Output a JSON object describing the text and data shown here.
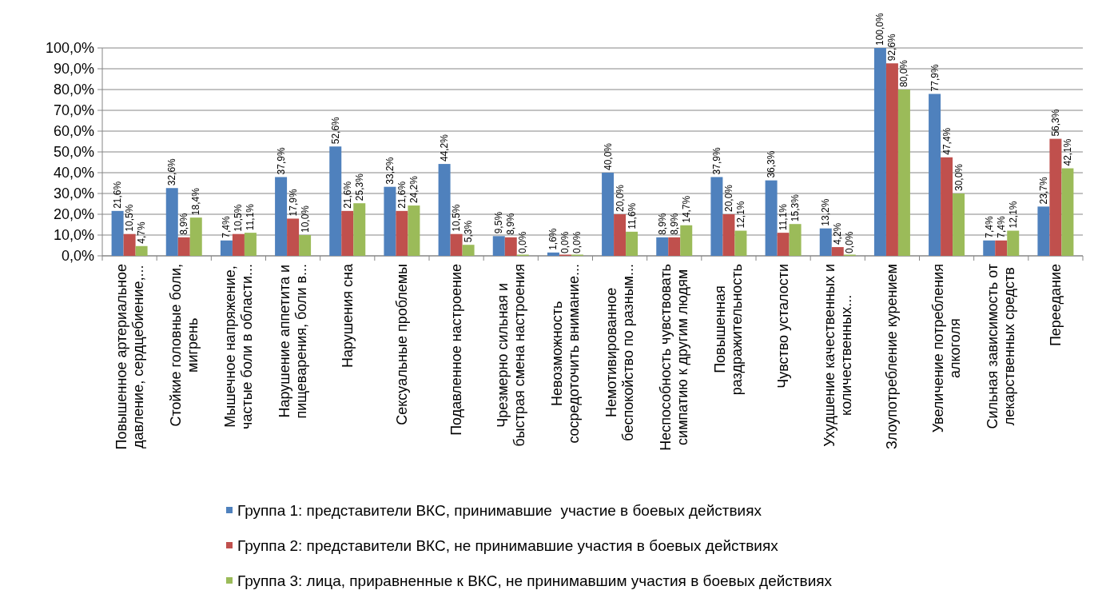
{
  "chart_data": {
    "type": "bar",
    "categories": [
      "Повышенное артериальное давление, сердцебиение,...",
      "Стойкие головные боли, мигрень",
      "Мышечное напряжение, частые боли в области...",
      "Нарушение аппетита и пищеварения, боли в...",
      "Нарушения сна",
      "Сексуальные проблемы",
      "Подавленное настроение",
      "Чрезмерно сильная и быстрая смена настроения",
      "Невозможность сосредоточить внимание...",
      "Немотивированное беспокойство по разным...",
      "Неспособность чувствовать симпатию к другим людям",
      "Повышенная раздражительность",
      "Чувство усталости",
      "Ухудшение качественных и количественных...",
      "Злоупотребление курением",
      "Увеличение потребления алкоголя",
      "Сильная зависимость от лекарственных средств",
      "Переедание"
    ],
    "series": [
      {
        "name": "Группа 1: представители ВКС, принимавшие  участие в боевых действиях",
        "color": "#4f81bd",
        "values": [
          21.6,
          32.6,
          7.4,
          37.9,
          52.6,
          33.2,
          44.2,
          9.5,
          1.6,
          40,
          8.9,
          37.9,
          36.3,
          13.2,
          100,
          77.9,
          7.4,
          23.7
        ],
        "value_labels": [
          "21,6%",
          "32,6%",
          "7,4%",
          "37,9%",
          "52,6%",
          "33,2%",
          "44,2%",
          "9,5%",
          "1,6%",
          "40,0%",
          "8,9%",
          "37,9%",
          "36,3%",
          "13,2%",
          "100,0%",
          "77,9%",
          "7,4%",
          "23,7%"
        ]
      },
      {
        "name": "Группа 2: представители ВКС, не принимавшие участия в боевых действиях",
        "color": "#c0504d",
        "values": [
          10.5,
          8.9,
          10.5,
          17.9,
          21.6,
          21.6,
          10.5,
          8.9,
          0,
          20,
          8.9,
          20,
          11.1,
          4.2,
          92.6,
          47.4,
          7.4,
          56.3
        ],
        "value_labels": [
          "10,5%",
          "8,9%",
          "10,5%",
          "17,9%",
          "21,6%",
          "21,6%",
          "10,5%",
          "8,9%",
          "0,0%",
          "20,0%",
          "8,9%",
          "20,0%",
          "11,1%",
          "4,2%",
          "92,6%",
          "47,4%",
          "7,4%",
          "56,3%"
        ]
      },
      {
        "name": "Группа 3: лица, приравненные к ВКС, не принимавшим участия в боевых действиях",
        "color": "#9bbb59",
        "values": [
          4.7,
          18.4,
          11.1,
          10,
          25.3,
          24.2,
          5.3,
          0,
          0,
          11.6,
          14.7,
          12.1,
          15.3,
          0,
          80,
          30,
          12.1,
          42.1
        ],
        "value_labels": [
          "4,7%",
          "18,4%",
          "11,1%",
          "10,0%",
          "25,3%",
          "24,2%",
          "5,3%",
          "0,0%",
          "0,0%",
          "11,6%",
          "14,7%",
          "12,1%",
          "15,3%",
          "0,0%",
          "80,0%",
          "30,0%",
          "12,1%",
          "42,1%"
        ]
      }
    ],
    "ylim": [
      0,
      100
    ],
    "yticks": [
      {
        "value": 0,
        "label": "0,0%"
      },
      {
        "value": 10,
        "label": "10,0%"
      },
      {
        "value": 20,
        "label": "20,0%"
      },
      {
        "value": 30,
        "label": "30,0%"
      },
      {
        "value": 40,
        "label": "40,0%"
      },
      {
        "value": 50,
        "label": "50,0%"
      },
      {
        "value": 60,
        "label": "60,0%"
      },
      {
        "value": 70,
        "label": "70,0%"
      },
      {
        "value": 80,
        "label": "80,0%"
      },
      {
        "value": 90,
        "label": "90,0%"
      },
      {
        "value": 100,
        "label": "100,0%"
      }
    ],
    "grid": "y",
    "legend": "bottom"
  }
}
